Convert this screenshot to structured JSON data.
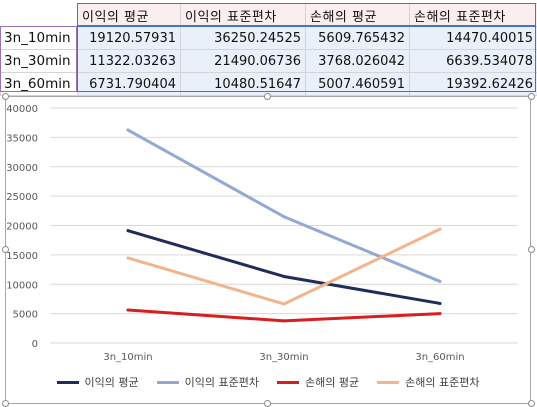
{
  "table": {
    "headers": [
      "이익의 평균",
      "이익의 표준편차",
      "손해의 평균",
      "손해의 표준편차"
    ],
    "rows": [
      {
        "label": "3n_10min",
        "values": [
          "19120.57931",
          "36250.24525",
          "5609.765432",
          "14470.40015"
        ]
      },
      {
        "label": "3n_30min",
        "values": [
          "11322.03263",
          "21490.06736",
          "3768.026042",
          "6639.534078"
        ]
      },
      {
        "label": "3n_60min",
        "values": [
          "6731.790404",
          "10480.51647",
          "5007.460591",
          "19392.62426"
        ]
      }
    ]
  },
  "chart_data": {
    "type": "line",
    "categories": [
      "3n_10min",
      "3n_30min",
      "3n_60min"
    ],
    "series": [
      {
        "name": "이익의 평균",
        "color": "#1f2d5a",
        "values": [
          19120.57931,
          11322.03263,
          6731.790404
        ]
      },
      {
        "name": "이익의 표준편차",
        "color": "#93a9d3",
        "values": [
          36250.24525,
          21490.06736,
          10480.51647
        ]
      },
      {
        "name": "손해의 평균",
        "color": "#d81e1e",
        "values": [
          5609.765432,
          3768.026042,
          5007.460591
        ]
      },
      {
        "name": "손해의 표준편차",
        "color": "#f2b48a",
        "values": [
          14470.40015,
          6639.534078,
          19392.62426
        ]
      }
    ],
    "yticks": [
      "0",
      "5000",
      "10000",
      "15000",
      "20000",
      "25000",
      "30000",
      "35000",
      "40000"
    ],
    "ylim": [
      0,
      40000
    ],
    "grid": true,
    "legend_position": "bottom"
  }
}
